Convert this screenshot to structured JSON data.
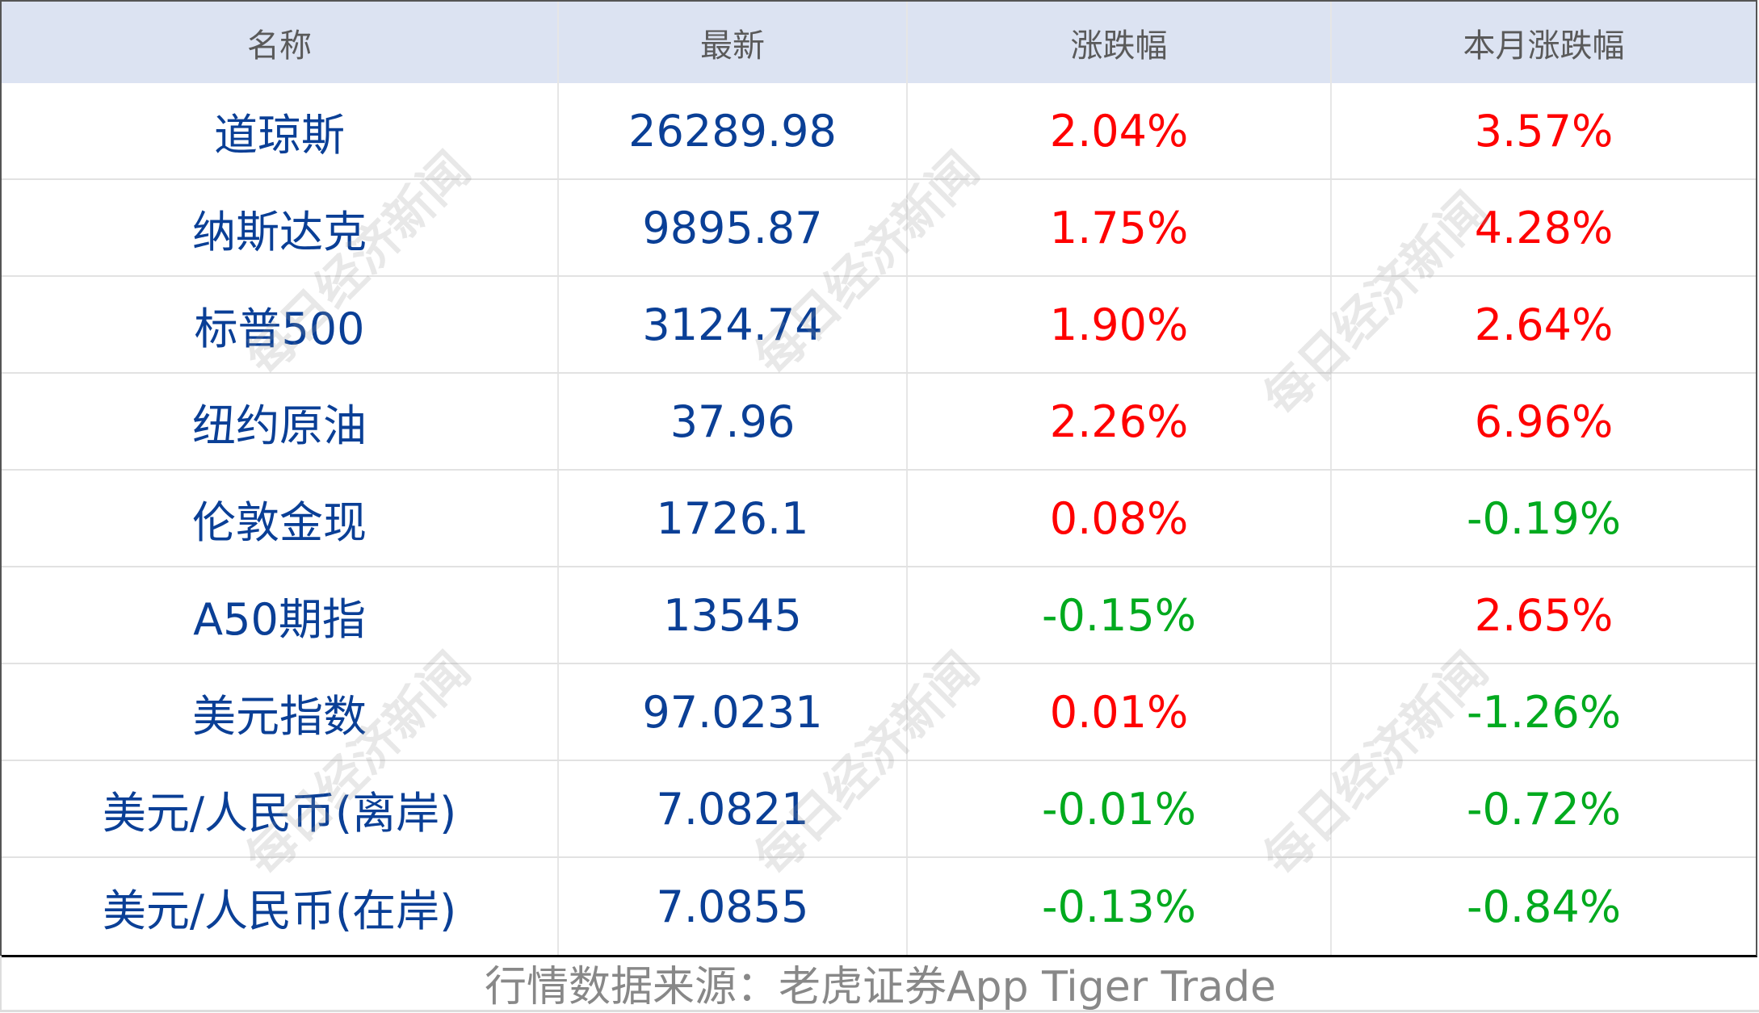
{
  "headers": [
    "名称",
    "最新",
    "涨跌幅",
    "本月涨跌幅"
  ],
  "rows": [
    {
      "name": "道琼斯",
      "latest": "26289.98",
      "change": "2.04%",
      "month": "3.57%"
    },
    {
      "name": "纳斯达克",
      "latest": "9895.87",
      "change": "1.75%",
      "month": "4.28%"
    },
    {
      "name": "标普500",
      "latest": "3124.74",
      "change": "1.90%",
      "month": "2.64%"
    },
    {
      "name": "纽约原油",
      "latest": "37.96",
      "change": "2.26%",
      "month": "6.96%"
    },
    {
      "name": "伦敦金现",
      "latest": "1726.1",
      "change": "0.08%",
      "month": "-0.19%"
    },
    {
      "name": "A50期指",
      "latest": "13545",
      "change": "-0.15%",
      "month": "2.65%"
    },
    {
      "name": "美元指数",
      "latest": "97.0231",
      "change": "0.01%",
      "month": "-1.26%"
    },
    {
      "name": "美元/人民币(离岸)",
      "latest": "7.0821",
      "change": "-0.01%",
      "month": "-0.72%"
    },
    {
      "name": "美元/人民币(在岸)",
      "latest": "7.0855",
      "change": "-0.13%",
      "month": "-0.84%"
    }
  ],
  "footer": "行情数据来源：老虎证券App Tiger Trade",
  "watermark": "每日经济新闻",
  "colors": {
    "up": "#ff0000",
    "down": "#00aa1e",
    "value": "#0a3f96",
    "header_bg": "#dce3f2"
  }
}
